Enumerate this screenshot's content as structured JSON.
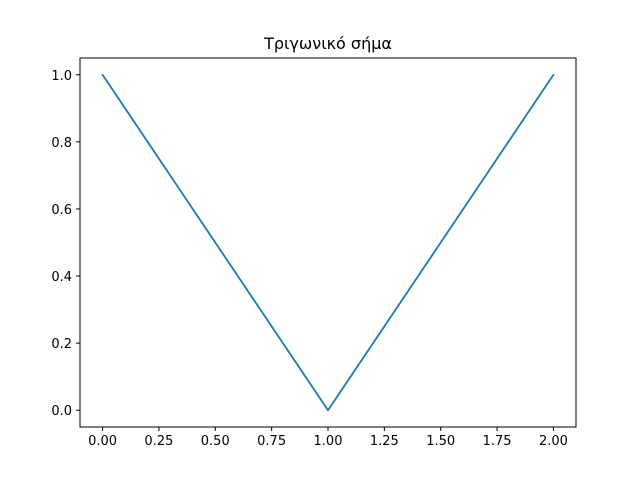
{
  "chart_data": {
    "type": "line",
    "title": "Τριγωνικό σήμα",
    "xlabel": "",
    "ylabel": "",
    "xlim": [
      -0.1,
      2.1
    ],
    "ylim": [
      -0.05,
      1.05
    ],
    "grid": false,
    "x_ticks": [
      0.0,
      0.25,
      0.5,
      0.75,
      1.0,
      1.25,
      1.5,
      1.75,
      2.0
    ],
    "x_tick_labels": [
      "0.00",
      "0.25",
      "0.50",
      "0.75",
      "1.00",
      "1.25",
      "1.50",
      "1.75",
      "2.00"
    ],
    "y_ticks": [
      0.0,
      0.2,
      0.4,
      0.6,
      0.8,
      1.0
    ],
    "y_tick_labels": [
      "0.0",
      "0.2",
      "0.4",
      "0.6",
      "0.8",
      "1.0"
    ],
    "series": [
      {
        "color": "#1f77b4",
        "x": [
          0.0,
          1.0,
          2.0
        ],
        "y": [
          1.0,
          0.0,
          1.0
        ]
      }
    ]
  }
}
